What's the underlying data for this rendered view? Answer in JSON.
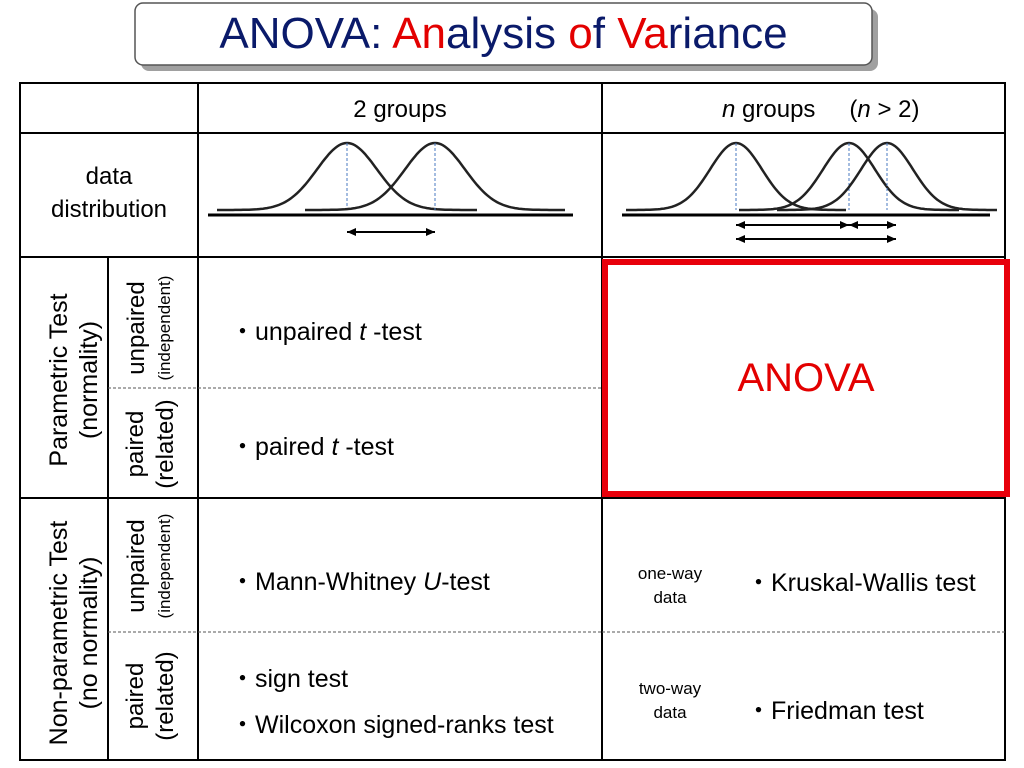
{
  "title": {
    "parts": [
      "ANOVA: ",
      "An",
      "alysis ",
      "o",
      "f ",
      "Va",
      "riance"
    ]
  },
  "header": {
    "two_groups": "2 groups",
    "n_groups": [
      "n",
      " groups",
      "(",
      "n",
      " > 2)"
    ]
  },
  "rows": {
    "distribution": "data distribution",
    "parametric": {
      "name": "Parametric Test",
      "note": "(normality)"
    },
    "nonparametric": {
      "name": "Non-parametric Test",
      "note": "(no normality)"
    },
    "unpaired": {
      "name": "unpaired",
      "note": "(independent)"
    },
    "paired": {
      "name": "paired",
      "note": "(related)"
    }
  },
  "cells": {
    "unpaired_t": [
      "・unpaired ",
      "t",
      " -test"
    ],
    "paired_t": [
      "・paired ",
      "t",
      " -test"
    ],
    "anova": "ANOVA",
    "mann_whitney": [
      "・Mann-Whitney ",
      "U",
      "-test"
    ],
    "sign": "・sign test",
    "wilcoxon": "・Wilcoxon signed-ranks test",
    "one_way": [
      "one-way",
      "data"
    ],
    "kruskal": "・Kruskal-Wallis test",
    "two_way": [
      "two-way",
      "data"
    ],
    "friedman": "・Friedman test"
  }
}
